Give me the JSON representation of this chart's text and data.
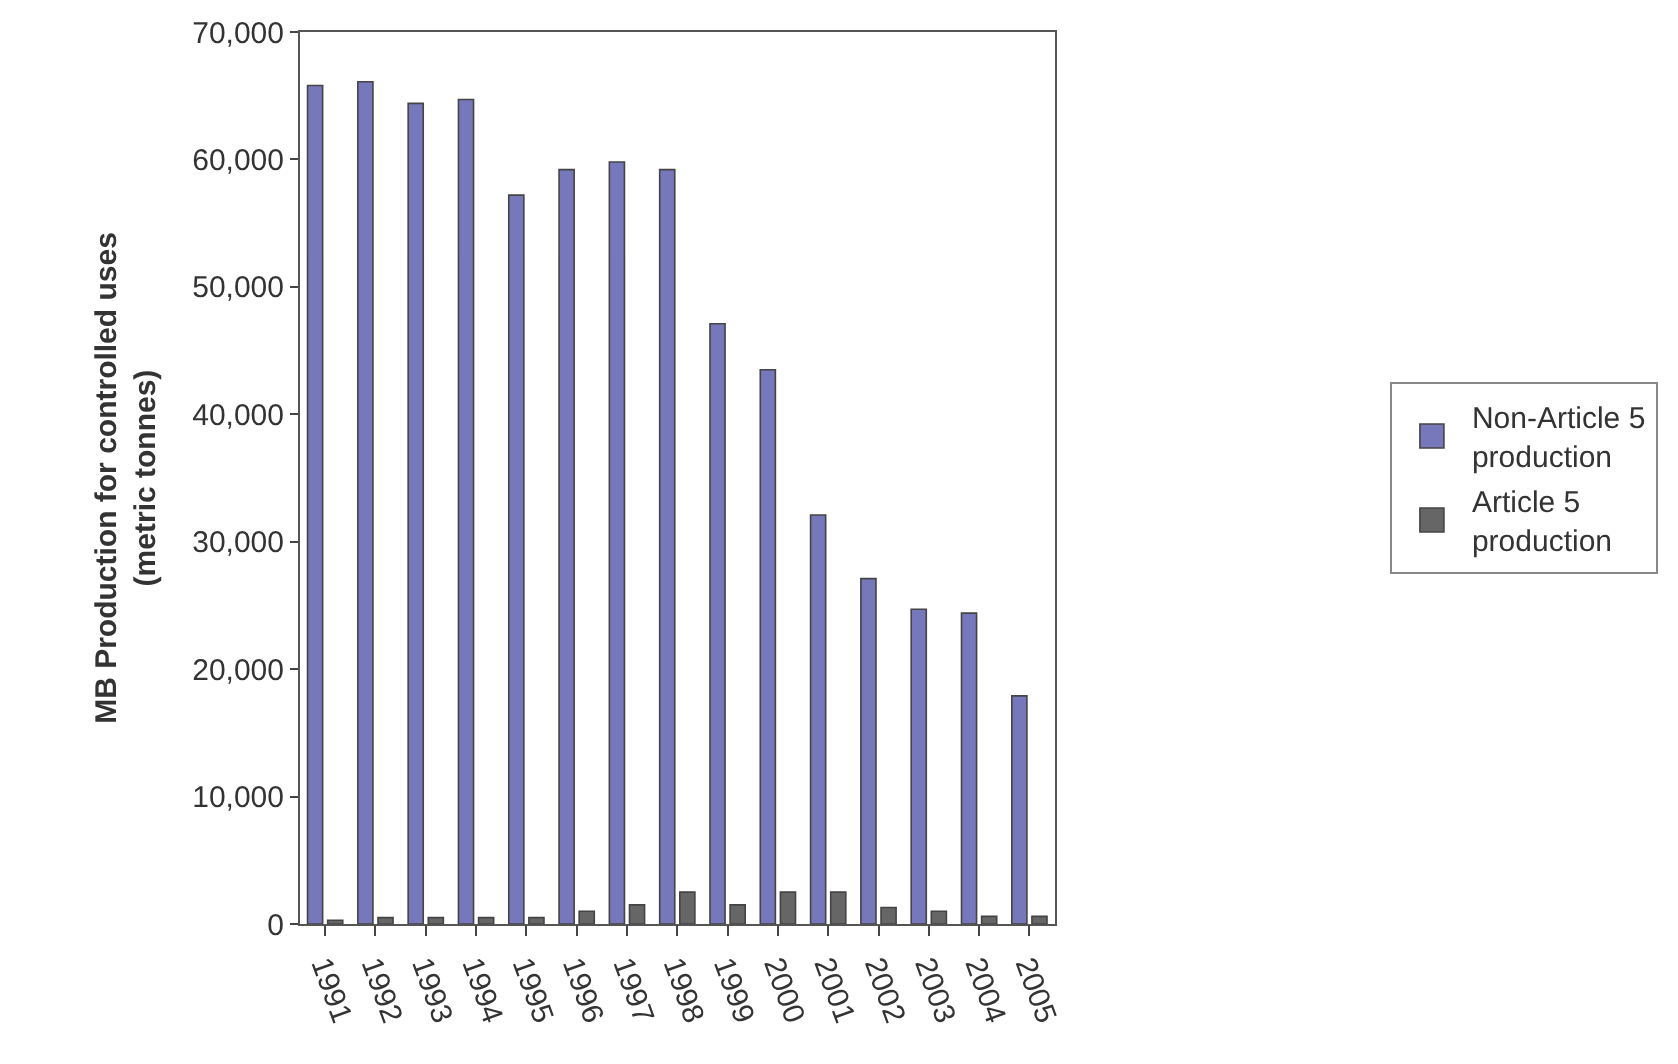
{
  "chart_data": {
    "type": "bar",
    "ylabel": "MB Production for controlled uses\n(metric tonnes)",
    "categories": [
      "1991",
      "1992",
      "1993",
      "1994",
      "1995",
      "1996",
      "1997",
      "1998",
      "1999",
      "2000",
      "2001",
      "2002",
      "2003",
      "2004",
      "2005"
    ],
    "series": [
      {
        "name": "Non-Article 5\nproduction",
        "color": "#7777bb",
        "values": [
          65800,
          66100,
          64400,
          64700,
          57200,
          59200,
          59800,
          59200,
          47100,
          43500,
          32100,
          27100,
          24700,
          24400,
          17900
        ]
      },
      {
        "name": "Article 5\nproduction",
        "color": "#666666",
        "values": [
          300,
          500,
          500,
          500,
          500,
          1000,
          1500,
          2500,
          1500,
          2500,
          2500,
          1300,
          1000,
          600,
          600
        ]
      }
    ],
    "ylim": [
      0,
      70000
    ],
    "yticks": [
      {
        "value": 0,
        "label": "0"
      },
      {
        "value": 10000,
        "label": "10,000"
      },
      {
        "value": 20000,
        "label": "20,000"
      },
      {
        "value": 30000,
        "label": "30,000"
      },
      {
        "value": 40000,
        "label": "40,000"
      },
      {
        "value": 50000,
        "label": "50,000"
      },
      {
        "value": 60000,
        "label": "60,000"
      },
      {
        "value": 70000,
        "label": "70,000"
      }
    ],
    "grid": false,
    "legend": "right"
  }
}
